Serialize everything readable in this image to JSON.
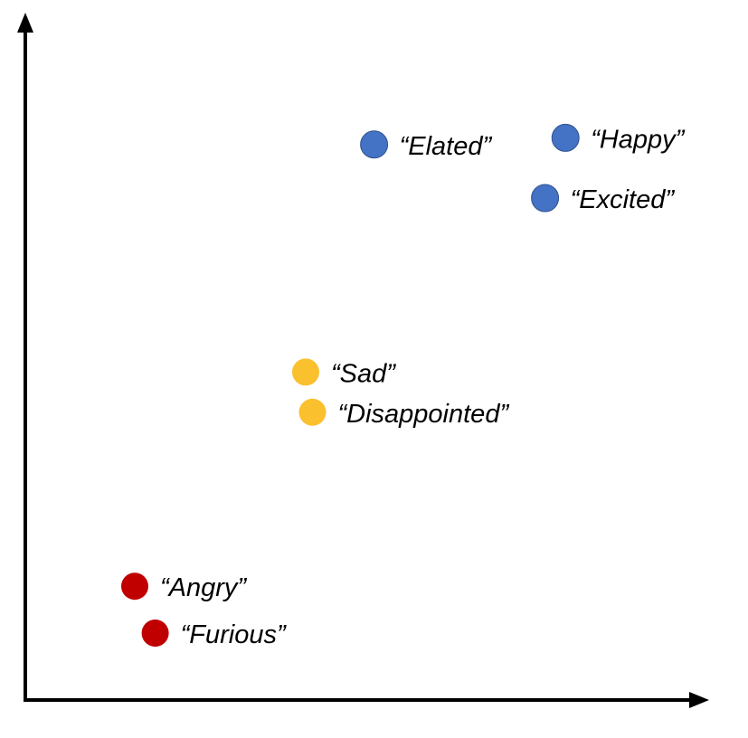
{
  "chart_data": {
    "type": "scatter",
    "title": "",
    "xlabel": "",
    "ylabel": "",
    "grid": false,
    "legend": "none",
    "xlim": [
      0,
      10
    ],
    "ylim": [
      0,
      10
    ],
    "points": [
      {
        "label": "“Elated”",
        "x": 5.1,
        "y": 8.3,
        "color": "#4472C4",
        "group": "blue"
      },
      {
        "label": "“Happy”",
        "x": 7.9,
        "y": 8.4,
        "color": "#4472C4",
        "group": "blue"
      },
      {
        "label": "“Excited”",
        "x": 7.6,
        "y": 7.5,
        "color": "#4472C4",
        "group": "blue"
      },
      {
        "label": "“Sad”",
        "x": 4.1,
        "y": 4.9,
        "color": "#FBC02D",
        "group": "yellow"
      },
      {
        "label": "“Disappointed”",
        "x": 4.2,
        "y": 4.3,
        "color": "#FBC02D",
        "group": "yellow"
      },
      {
        "label": "“Angry”",
        "x": 1.6,
        "y": 1.7,
        "color": "#C00000",
        "group": "red"
      },
      {
        "label": "“Furious”",
        "x": 1.9,
        "y": 1.0,
        "color": "#C00000",
        "group": "red"
      }
    ]
  }
}
